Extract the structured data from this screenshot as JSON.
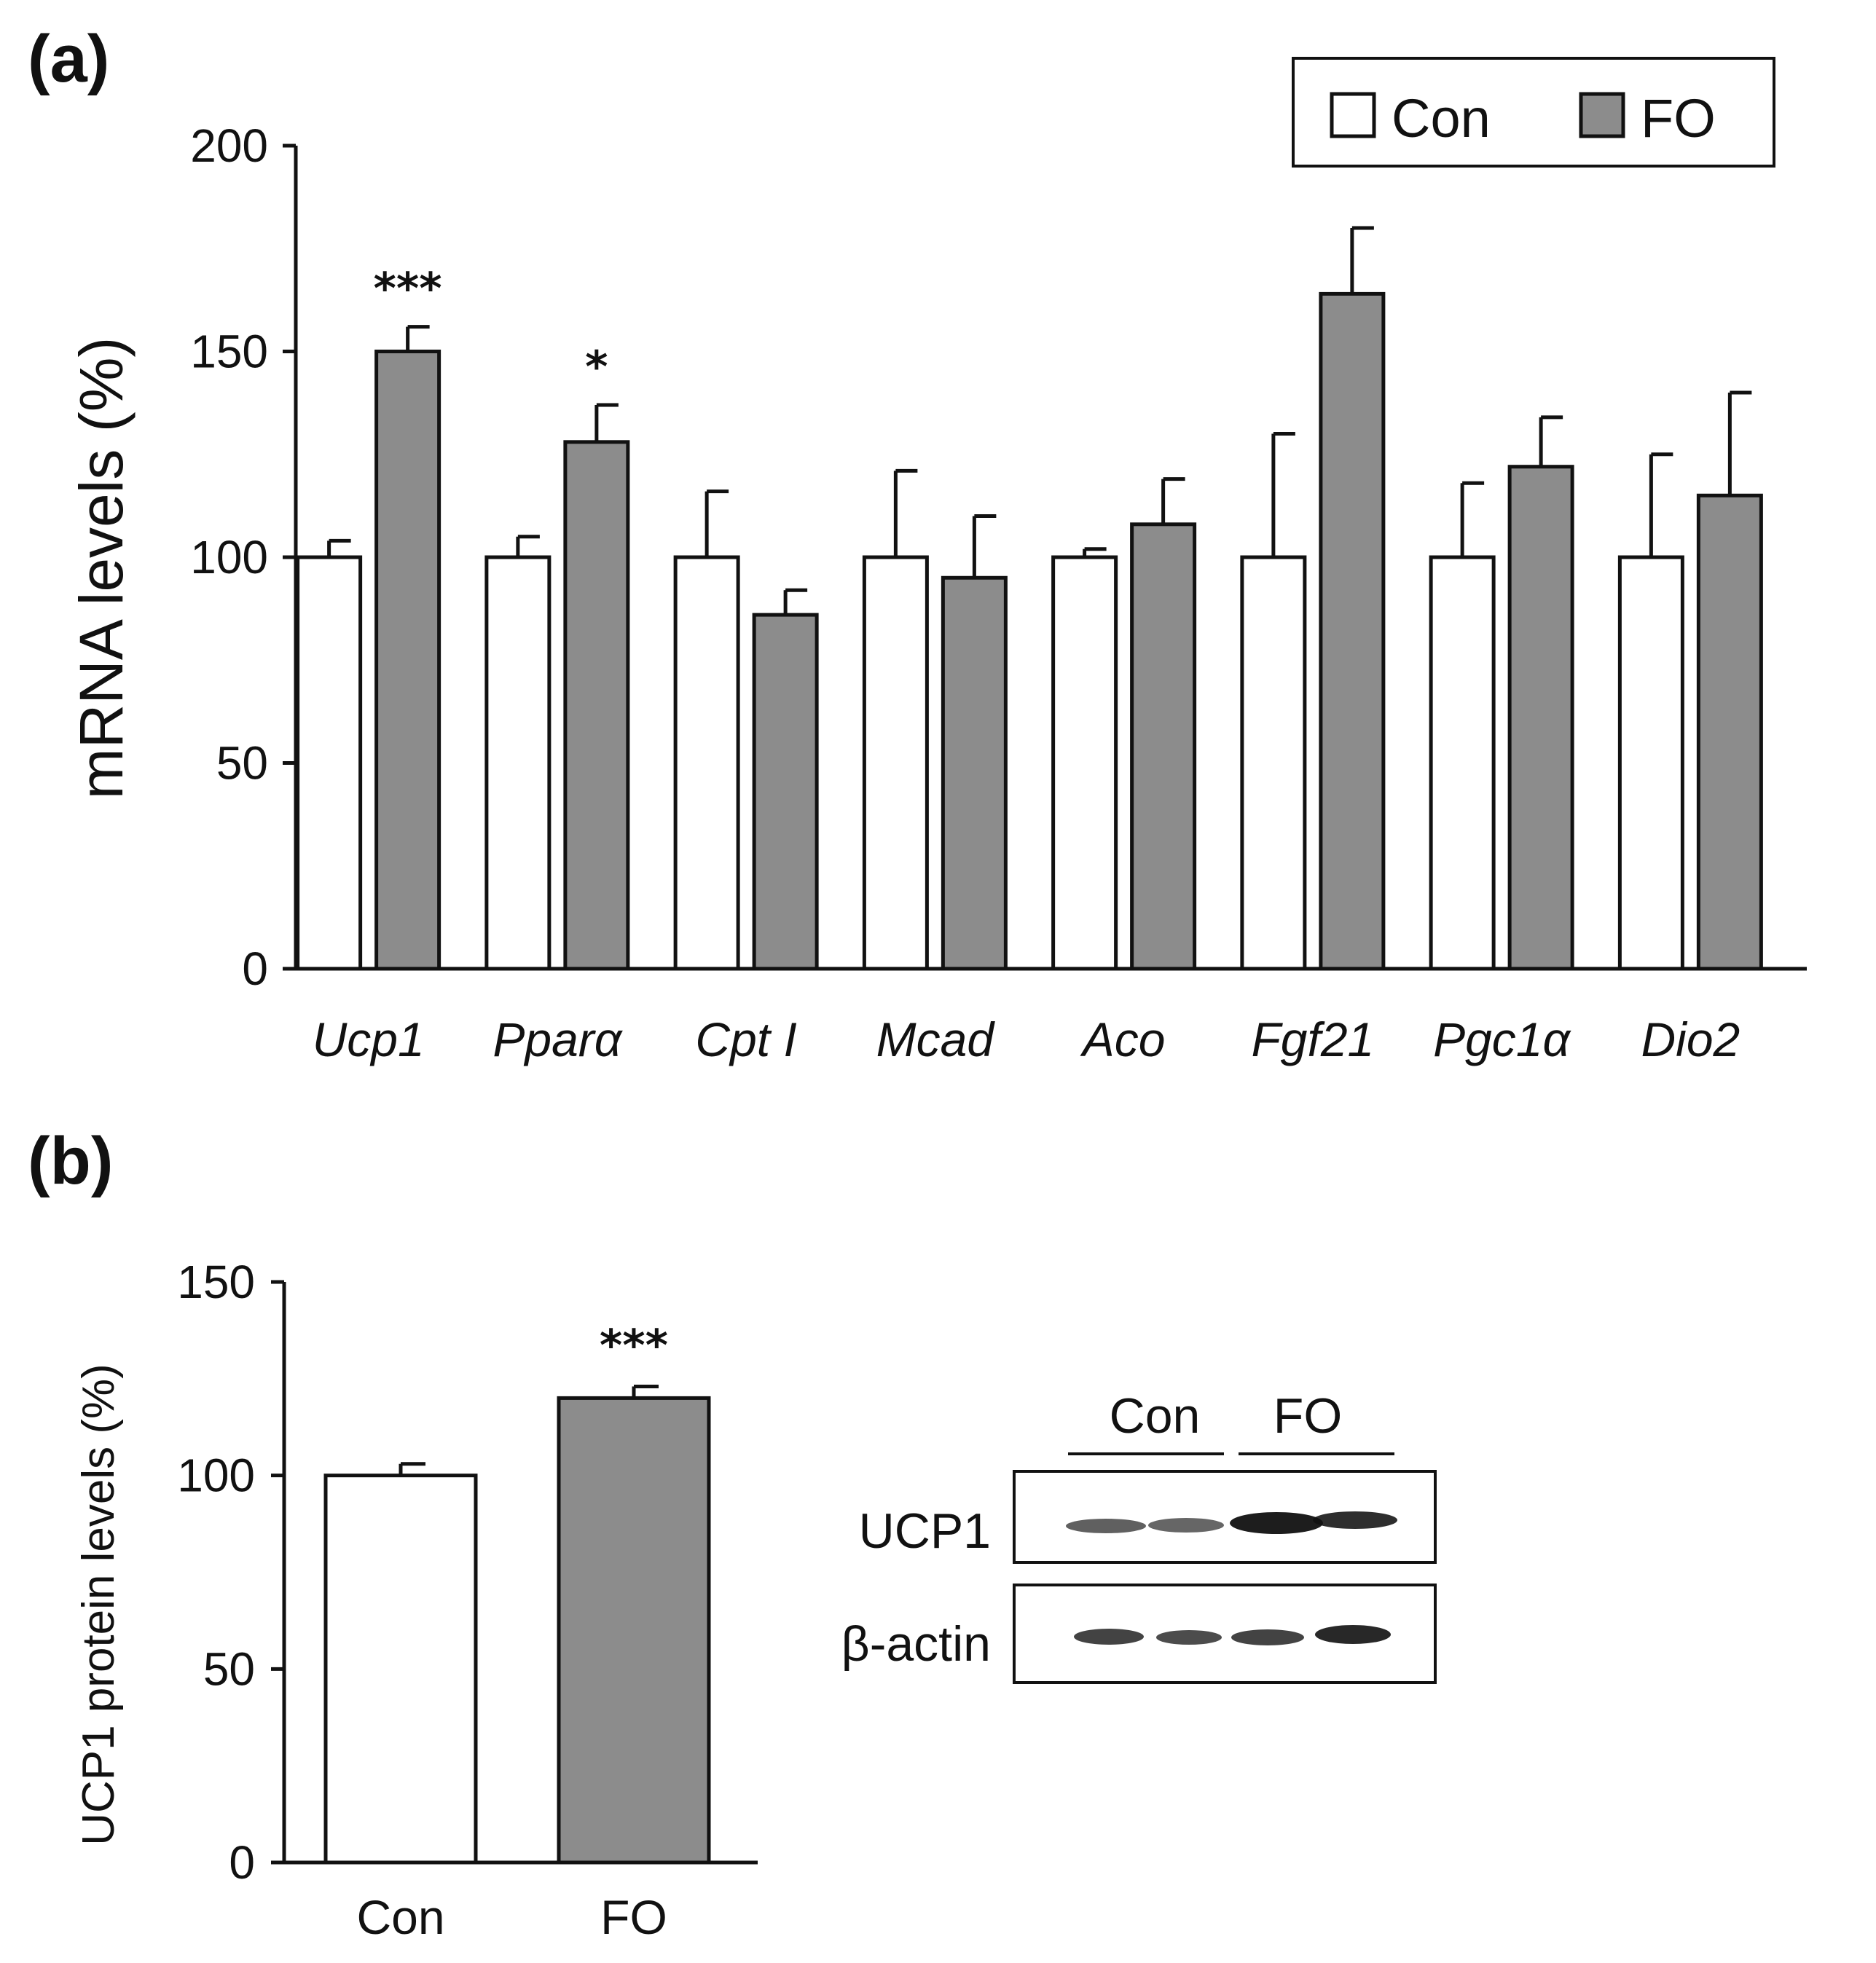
{
  "figure": {
    "panel_a_label": "(a)",
    "panel_b_label": "(b)"
  },
  "colors": {
    "con": "#ffffff",
    "fo": "#8c8c8c",
    "ink": "#111111"
  },
  "chart_data": [
    {
      "type": "bar",
      "panel": "(a)",
      "title": "",
      "xlabel": "",
      "ylabel": "mRNA levels (%)",
      "ylim": [
        0,
        200
      ],
      "yticks": [
        0,
        50,
        100,
        150,
        200
      ],
      "categories": [
        "Ucp1",
        "Pparα",
        "Cpt I",
        "Mcad",
        "Aco",
        "Fgf21",
        "Pgc1α",
        "Dio2"
      ],
      "series": [
        {
          "name": "Con",
          "values": [
            100,
            100,
            100,
            100,
            100,
            100,
            100,
            100
          ],
          "errors": [
            4,
            5,
            16,
            21,
            2,
            30,
            18,
            25
          ]
        },
        {
          "name": "FO",
          "values": [
            150,
            128,
            86,
            95,
            108,
            164,
            122,
            115
          ],
          "errors": [
            6,
            9,
            6,
            15,
            11,
            16,
            12,
            25
          ]
        }
      ],
      "significance": [
        "***",
        "*",
        "",
        "",
        "",
        "",
        "",
        ""
      ],
      "legend": {
        "position": "top-right",
        "entries": [
          "Con",
          "FO"
        ]
      }
    },
    {
      "type": "bar",
      "panel": "(b)",
      "title": "",
      "xlabel": "",
      "ylabel": "UCP1 protein levels (%)",
      "ylim": [
        0,
        150
      ],
      "yticks": [
        0,
        50,
        100,
        150
      ],
      "categories": [
        "Con",
        "FO"
      ],
      "values": [
        100,
        120
      ],
      "errors": [
        3,
        3
      ],
      "significance": [
        "",
        "***"
      ]
    }
  ],
  "western_blot": {
    "group_labels": [
      "Con",
      "FO"
    ],
    "row_labels": [
      "UCP1",
      "β-actin"
    ]
  }
}
